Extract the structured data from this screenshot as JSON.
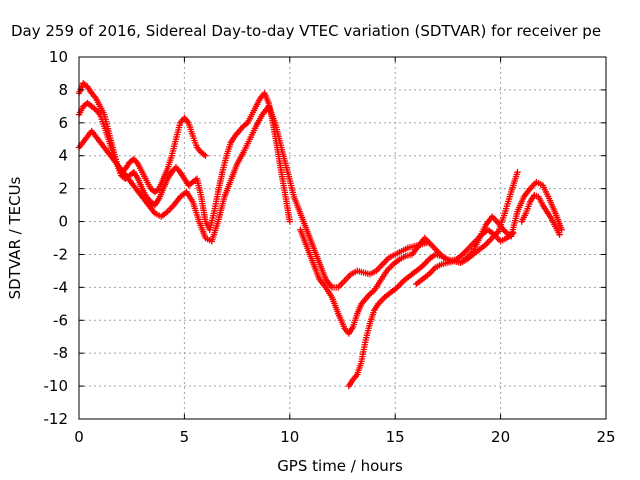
{
  "chart_data": {
    "type": "scatter",
    "title": "Day 259 of 2016, Sidereal Day-to-day VTEC variation (SDTVAR) for receiver pe",
    "xlabel": "GPS time / hours",
    "ylabel": "SDTVAR / TECUs",
    "xlim": [
      0,
      25
    ],
    "ylim": [
      -12,
      10
    ],
    "xticks": [
      "0",
      "5",
      "10",
      "15",
      "20",
      "25"
    ],
    "yticks": [
      "-12",
      "-10",
      "-8",
      "-6",
      "-4",
      "-2",
      "0",
      "2",
      "4",
      "6",
      "8",
      "10"
    ],
    "grid": true,
    "marker": "+",
    "marker_color": "#ff0000",
    "series": [
      {
        "x": [
          0.0,
          0.2,
          0.4,
          0.6,
          0.8,
          1.0,
          1.2,
          1.4,
          1.6,
          1.8,
          2.0,
          2.2,
          2.4,
          2.6,
          2.8,
          3.0,
          3.2,
          3.4,
          3.6,
          3.8,
          4.0,
          4.2,
          4.4,
          4.6,
          4.8,
          5.0,
          5.2,
          5.4,
          5.6,
          5.8,
          6.0
        ],
        "y": [
          7.8,
          8.4,
          8.2,
          7.8,
          7.5,
          7.0,
          6.5,
          5.5,
          4.5,
          3.5,
          3.0,
          3.2,
          3.6,
          3.8,
          3.5,
          3.0,
          2.5,
          2.0,
          1.8,
          2.0,
          2.6,
          3.2,
          4.0,
          5.0,
          6.0,
          6.3,
          6.0,
          5.2,
          4.5,
          4.2,
          4.0
        ]
      },
      {
        "x": [
          0.0,
          0.2,
          0.4,
          0.6,
          0.8,
          1.0,
          1.2,
          1.4,
          1.6,
          1.8,
          2.0,
          2.2,
          2.4,
          2.6,
          2.8,
          3.0,
          3.2,
          3.4,
          3.6,
          3.8,
          4.0,
          4.2,
          4.4,
          4.6,
          4.8,
          5.0,
          5.2,
          5.4,
          5.6,
          5.8,
          6.0,
          6.2,
          6.4,
          6.6,
          6.8,
          7.0,
          7.2,
          7.4,
          7.6,
          7.8,
          8.0,
          8.2,
          8.4,
          8.6,
          8.8,
          9.0,
          9.2,
          9.4,
          9.6,
          9.8,
          10.0
        ],
        "y": [
          6.5,
          7.0,
          7.2,
          7.0,
          6.8,
          6.5,
          5.8,
          5.0,
          4.2,
          3.5,
          2.8,
          2.6,
          2.8,
          3.0,
          2.6,
          2.0,
          1.5,
          1.2,
          1.0,
          1.4,
          2.0,
          2.6,
          3.0,
          3.3,
          3.0,
          2.6,
          2.2,
          2.4,
          2.6,
          1.5,
          0.0,
          -0.5,
          0.5,
          1.8,
          3.0,
          4.0,
          4.8,
          5.2,
          5.5,
          5.8,
          6.0,
          6.5,
          7.0,
          7.5,
          7.8,
          7.2,
          6.0,
          4.5,
          3.0,
          1.5,
          0.0
        ]
      },
      {
        "x": [
          0.0,
          0.3,
          0.6,
          0.9,
          1.2,
          1.5,
          1.8,
          2.1,
          2.4,
          2.7,
          3.0,
          3.3,
          3.6,
          3.9,
          4.2,
          4.5,
          4.8,
          5.1,
          5.4,
          5.7,
          6.0,
          6.3,
          6.6,
          6.9,
          7.2,
          7.5,
          7.8,
          8.1,
          8.4,
          8.7,
          9.0,
          9.3,
          9.6,
          9.9,
          10.2,
          10.5,
          10.8,
          11.1,
          11.4,
          11.7,
          12.0,
          12.3,
          12.6,
          12.9,
          13.2,
          13.5,
          13.8,
          14.1,
          14.4,
          14.7,
          15.0,
          15.3,
          15.6,
          15.9,
          16.2,
          16.5
        ],
        "y": [
          4.5,
          5.0,
          5.5,
          5.0,
          4.5,
          4.0,
          3.5,
          3.0,
          2.5,
          2.0,
          1.5,
          1.0,
          0.5,
          0.3,
          0.6,
          1.0,
          1.5,
          1.8,
          1.2,
          0.0,
          -1.0,
          -1.2,
          0.0,
          1.5,
          2.5,
          3.5,
          4.2,
          5.0,
          5.8,
          6.5,
          7.0,
          6.0,
          4.5,
          3.0,
          1.5,
          0.5,
          -0.5,
          -1.5,
          -2.5,
          -3.5,
          -4.0,
          -4.0,
          -3.6,
          -3.2,
          -3.0,
          -3.1,
          -3.2,
          -3.0,
          -2.6,
          -2.2,
          -2.0,
          -1.8,
          -1.6,
          -1.5,
          -1.4,
          -1.3
        ]
      },
      {
        "x": [
          10.5,
          10.8,
          11.1,
          11.4,
          11.7,
          12.0,
          12.3,
          12.6,
          12.8,
          13.0,
          13.2,
          13.4,
          13.6,
          13.8,
          14.0,
          14.3,
          14.6,
          14.9,
          15.2,
          15.5,
          15.8,
          16.1,
          16.4,
          16.7,
          17.0,
          17.3,
          17.6,
          17.9,
          18.2,
          18.5,
          18.8,
          19.1,
          19.4,
          19.7,
          20.0,
          20.3,
          20.6
        ],
        "y": [
          -0.5,
          -1.5,
          -2.5,
          -3.5,
          -4.0,
          -4.6,
          -5.6,
          -6.5,
          -6.8,
          -6.4,
          -5.6,
          -5.0,
          -4.7,
          -4.4,
          -4.2,
          -3.6,
          -3.0,
          -2.6,
          -2.3,
          -2.1,
          -2.0,
          -1.5,
          -1.0,
          -1.4,
          -1.8,
          -2.2,
          -2.4,
          -2.3,
          -2.0,
          -1.6,
          -1.2,
          -0.8,
          -0.5,
          -0.8,
          -1.2,
          -1.0,
          -0.7
        ]
      },
      {
        "x": [
          12.8,
          13.0,
          13.2,
          13.4,
          13.6,
          13.8,
          14.0,
          14.2,
          14.5,
          14.8,
          15.1,
          15.4,
          15.7,
          16.0,
          16.3,
          16.6,
          16.9,
          17.2,
          17.5,
          17.8,
          18.1,
          18.4,
          18.7,
          19.0,
          19.3,
          19.6,
          19.9,
          20.2,
          20.5,
          20.8
        ],
        "y": [
          -10.0,
          -9.6,
          -9.3,
          -8.5,
          -7.2,
          -6.2,
          -5.4,
          -5.0,
          -4.6,
          -4.3,
          -4.0,
          -3.6,
          -3.3,
          -3.0,
          -2.7,
          -2.3,
          -2.0,
          -2.1,
          -2.3,
          -2.4,
          -2.5,
          -2.3,
          -2.0,
          -1.7,
          -1.4,
          -1.0,
          -0.6,
          0.5,
          1.8,
          3.0
        ]
      },
      {
        "x": [
          16.0,
          16.3,
          16.6,
          16.9,
          17.2,
          17.5,
          17.8,
          18.1,
          18.4,
          18.7,
          19.0,
          19.3,
          19.6,
          19.9,
          20.2,
          20.5,
          20.8,
          21.1,
          21.4,
          21.7,
          22.0,
          22.3,
          22.6,
          22.9
        ],
        "y": [
          -3.8,
          -3.5,
          -3.2,
          -2.8,
          -2.6,
          -2.5,
          -2.4,
          -2.5,
          -2.2,
          -1.8,
          -1.0,
          -0.2,
          0.3,
          -0.1,
          -0.6,
          -0.9,
          0.6,
          1.5,
          2.0,
          2.4,
          2.2,
          1.4,
          0.5,
          -0.5
        ]
      },
      {
        "x": [
          21.0,
          21.2,
          21.4,
          21.6,
          21.8,
          22.0,
          22.2,
          22.4,
          22.6,
          22.8
        ],
        "y": [
          0.0,
          0.5,
          1.2,
          1.6,
          1.5,
          1.0,
          0.6,
          0.2,
          -0.3,
          -0.8
        ]
      }
    ]
  }
}
